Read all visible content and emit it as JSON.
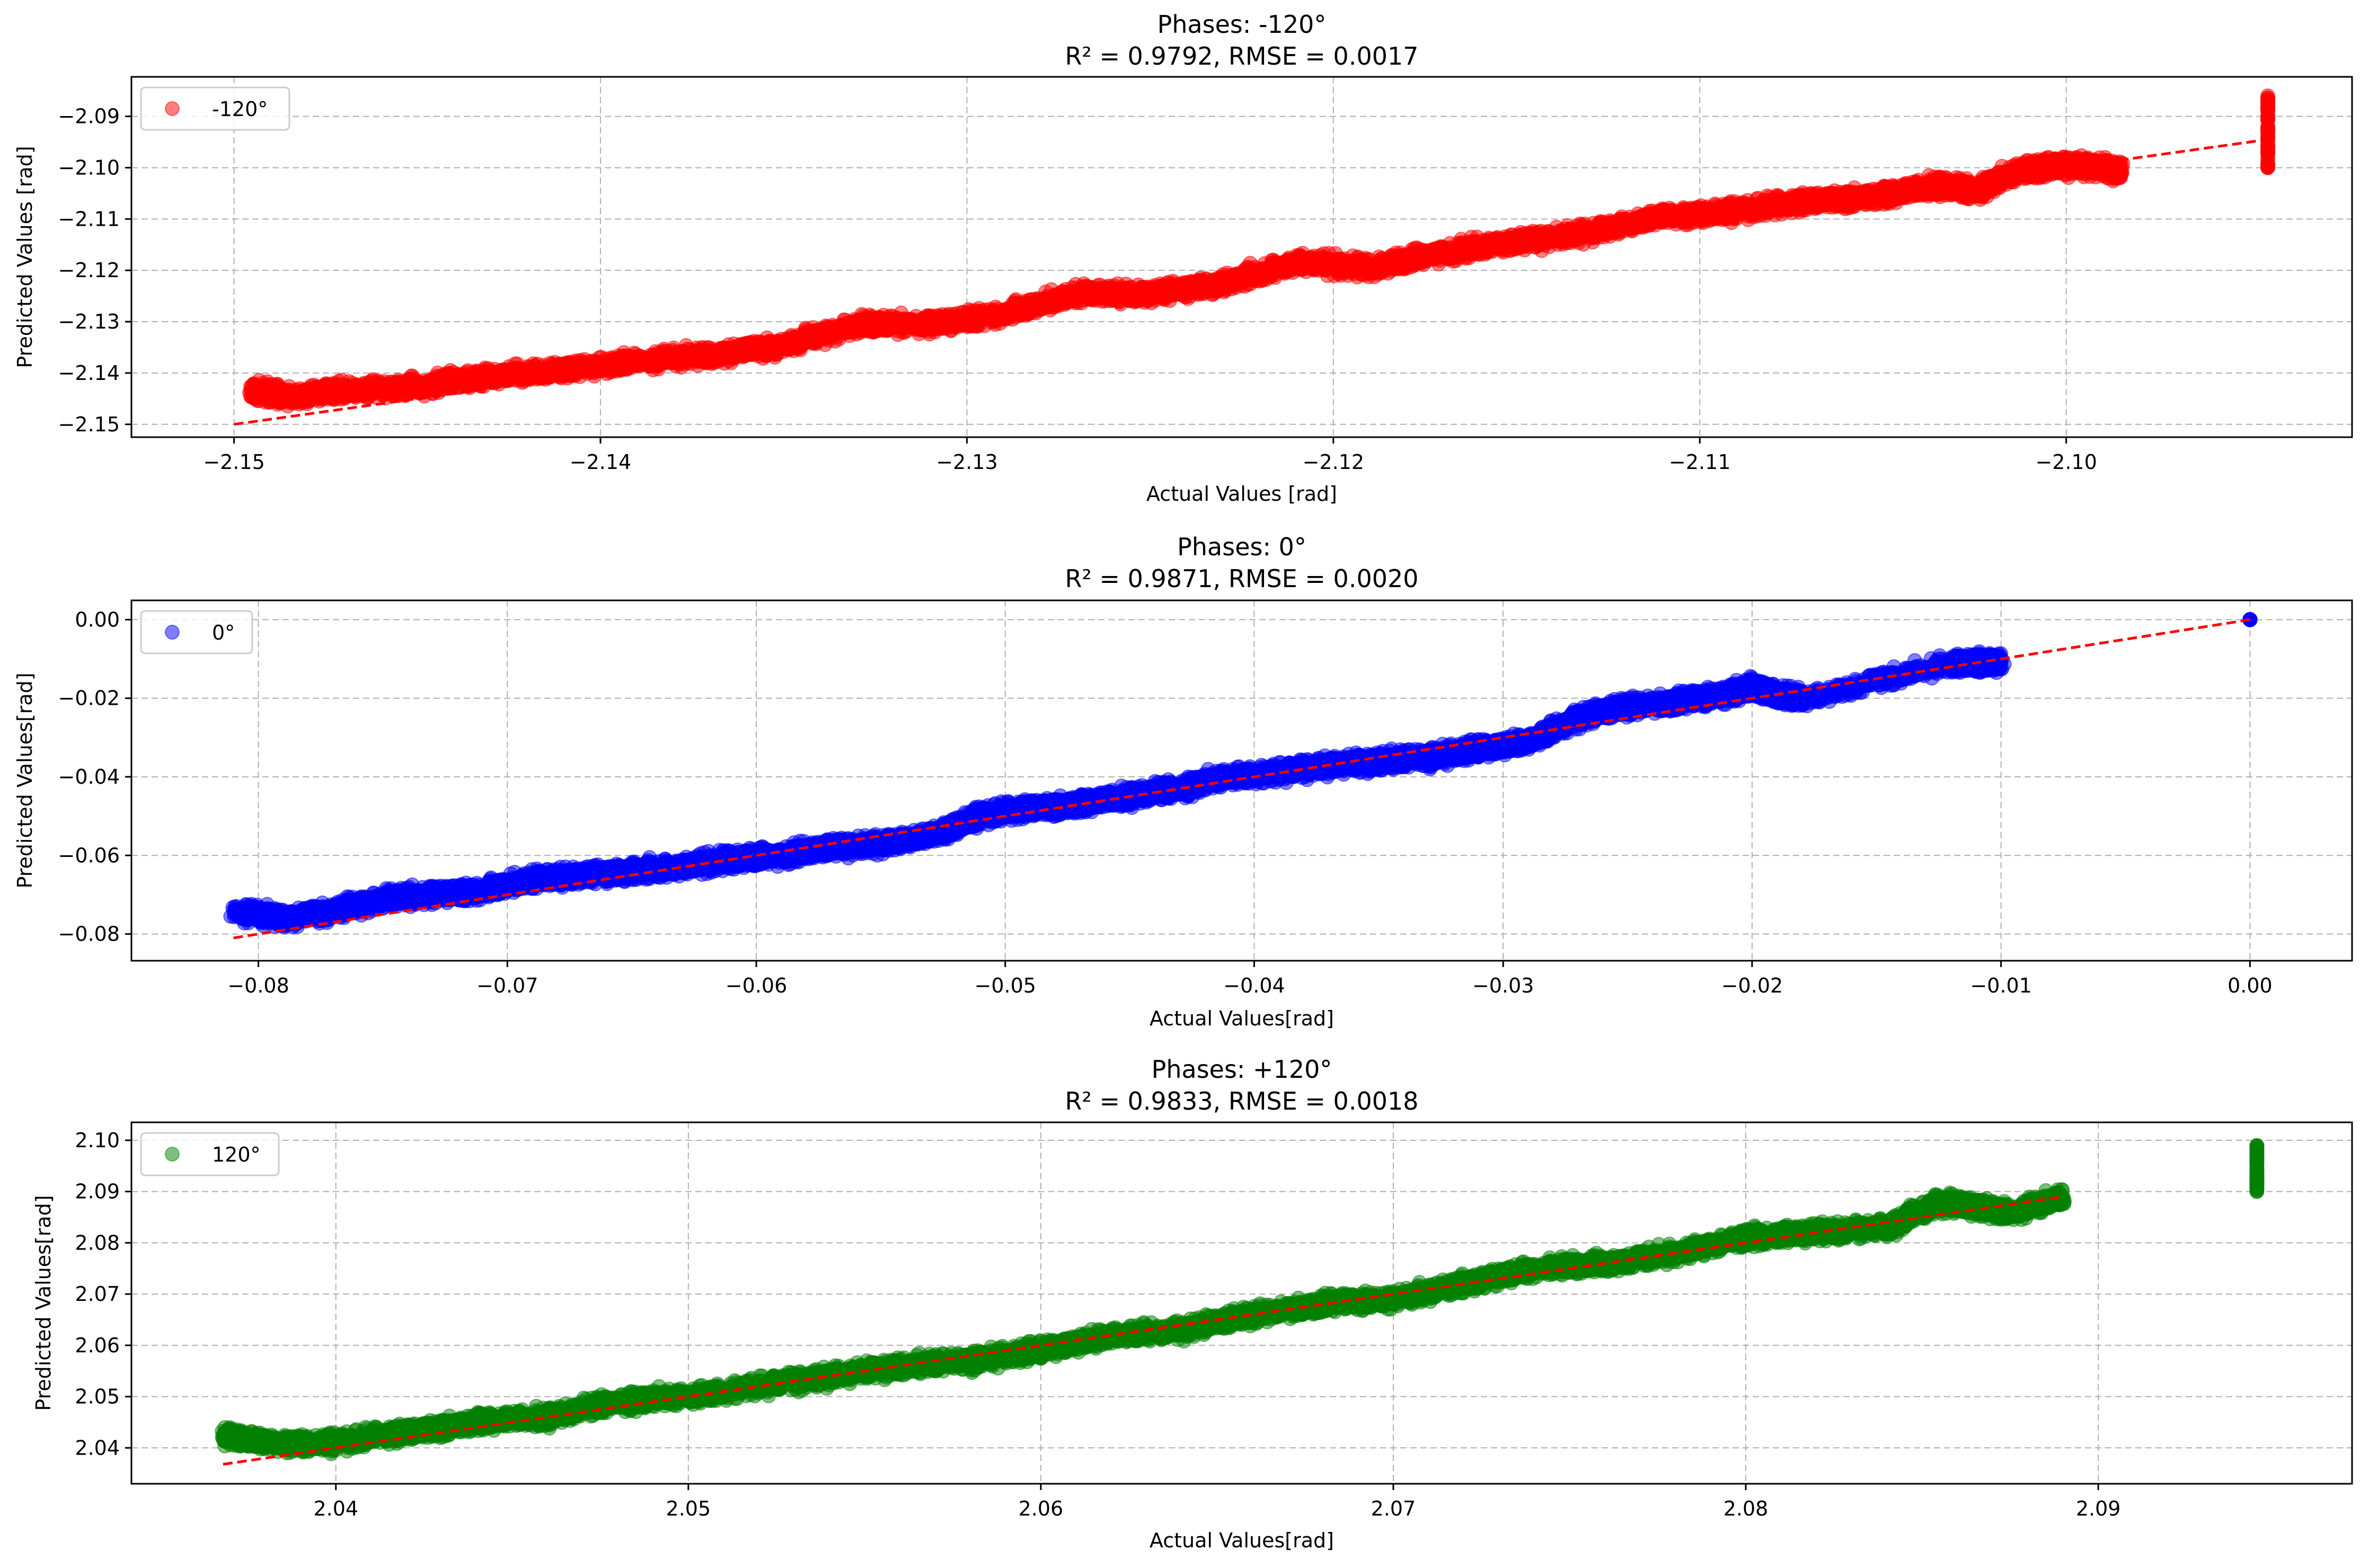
{
  "chart_data": [
    {
      "type": "scatter",
      "title": "Phases: -120°",
      "subtitle": "R² = 0.9792, RMSE = 0.0017",
      "xlabel": "Actual Values [rad]",
      "ylabel": "Predicted Values [rad]",
      "xlim": [
        -2.1528,
        -2.0922
      ],
      "ylim": [
        -2.1525,
        -2.0823
      ],
      "xticks": [
        -2.15,
        -2.14,
        -2.13,
        -2.12,
        -2.11,
        -2.1
      ],
      "yticks": [
        -2.15,
        -2.14,
        -2.13,
        -2.12,
        -2.11,
        -2.1,
        -2.09
      ],
      "x_tick_labels": [
        "−2.15",
        "−2.14",
        "−2.13",
        "−2.12",
        "−2.11",
        "−2.10"
      ],
      "y_tick_labels": [
        "−2.15",
        "−2.14",
        "−2.13",
        "−2.12",
        "−2.11",
        "−2.10",
        "−2.09"
      ],
      "grid": true,
      "legend_position": "top-left",
      "series": [
        {
          "name": "-120°",
          "color": "#ff0000",
          "marker": "circle",
          "alpha": 0.5,
          "x": [
            -2.1495,
            -2.1485,
            -2.147,
            -2.145,
            -2.143,
            -2.141,
            -2.139,
            -2.137,
            -2.135,
            -2.133,
            -2.131,
            -2.129,
            -2.127,
            -2.125,
            -2.123,
            -2.121,
            -2.119,
            -2.117,
            -2.115,
            -2.113,
            -2.111,
            -2.109,
            -2.107,
            -2.105,
            -2.1035,
            -2.1025,
            -2.1012,
            -2.1005,
            -2.0995,
            -2.0985,
            -2.0945,
            -2.0945,
            -2.0945,
            -2.0945
          ],
          "y": [
            -2.1435,
            -2.1445,
            -2.1435,
            -2.1425,
            -2.1405,
            -2.1395,
            -2.1375,
            -2.1365,
            -2.1345,
            -2.1305,
            -2.1305,
            -2.1285,
            -2.1245,
            -2.1245,
            -2.1225,
            -2.1185,
            -2.1195,
            -2.1165,
            -2.1145,
            -2.1125,
            -2.1095,
            -2.1085,
            -2.1065,
            -2.1055,
            -2.1035,
            -2.1045,
            -2.1005,
            -2.1,
            -2.0995,
            -2.1005,
            -2.086,
            -2.092,
            -2.096,
            -2.1
          ]
        }
      ],
      "reference_line": {
        "from": [
          -2.15,
          -2.15
        ],
        "to": [
          -2.0945,
          -2.0945
        ],
        "color": "#ff0000",
        "style": "dashed"
      }
    },
    {
      "type": "scatter",
      "title": "Phases: 0°",
      "subtitle": "R² = 0.9871, RMSE = 0.0020",
      "xlabel": "Actual Values[rad]",
      "ylabel": "Predicted Values[rad]",
      "xlim": [
        -0.0851,
        0.0041
      ],
      "ylim": [
        -0.0868,
        0.0049
      ],
      "xticks": [
        -0.08,
        -0.07,
        -0.06,
        -0.05,
        -0.04,
        -0.03,
        -0.02,
        -0.01,
        0.0
      ],
      "yticks": [
        -0.08,
        -0.06,
        -0.04,
        -0.02,
        0.0
      ],
      "x_tick_labels": [
        "−0.08",
        "−0.07",
        "−0.06",
        "−0.05",
        "−0.04",
        "−0.03",
        "−0.02",
        "−0.01",
        "0.00"
      ],
      "y_tick_labels": [
        "−0.08",
        "−0.06",
        "−0.04",
        "−0.02",
        "0.00"
      ],
      "grid": true,
      "legend_position": "top-left",
      "series": [
        {
          "name": "0°",
          "color": "#0000ff",
          "marker": "circle",
          "alpha": 0.5,
          "x": [
            -0.081,
            -0.079,
            -0.077,
            -0.075,
            -0.073,
            -0.071,
            -0.069,
            -0.067,
            -0.065,
            -0.063,
            -0.061,
            -0.059,
            -0.057,
            -0.055,
            -0.053,
            -0.051,
            -0.049,
            -0.047,
            -0.045,
            -0.043,
            -0.041,
            -0.039,
            -0.037,
            -0.035,
            -0.033,
            -0.031,
            -0.029,
            -0.027,
            -0.025,
            -0.023,
            -0.021,
            -0.02,
            -0.019,
            -0.018,
            -0.012,
            -0.011,
            -0.01,
            0.0
          ],
          "y": [
            -0.074,
            -0.076,
            -0.074,
            -0.071,
            -0.07,
            -0.069,
            -0.066,
            -0.065,
            -0.064,
            -0.063,
            -0.061,
            -0.06,
            -0.058,
            -0.057,
            -0.055,
            -0.05,
            -0.048,
            -0.047,
            -0.045,
            -0.043,
            -0.04,
            -0.039,
            -0.037,
            -0.036,
            -0.035,
            -0.033,
            -0.031,
            -0.025,
            -0.022,
            -0.021,
            -0.019,
            -0.017,
            -0.019,
            -0.02,
            -0.011,
            -0.011,
            -0.011,
            0.0
          ]
        }
      ],
      "reference_line": {
        "from": [
          -0.081,
          -0.081
        ],
        "to": [
          0.0,
          0.0
        ],
        "color": "#ff0000",
        "style": "dashed"
      }
    },
    {
      "type": "scatter",
      "title": "Phases: +120°",
      "subtitle": "R² = 0.9833, RMSE = 0.0018",
      "xlabel": "Actual Values[rad]",
      "ylabel": "Predicted Values[rad]",
      "xlim": [
        2.0342,
        2.0972
      ],
      "ylim": [
        2.033,
        2.1035
      ],
      "xticks": [
        2.04,
        2.05,
        2.06,
        2.07,
        2.08,
        2.09
      ],
      "yticks": [
        2.04,
        2.05,
        2.06,
        2.07,
        2.08,
        2.09,
        2.1
      ],
      "x_tick_labels": [
        "2.04",
        "2.05",
        "2.06",
        "2.07",
        "2.08",
        "2.09"
      ],
      "y_tick_labels": [
        "2.04",
        "2.05",
        "2.06",
        "2.07",
        "2.08",
        "2.09",
        "2.10"
      ],
      "grid": true,
      "legend_position": "top-left",
      "series": [
        {
          "name": "120°",
          "color": "#008000",
          "marker": "circle",
          "alpha": 0.5,
          "x": [
            2.0368,
            2.038,
            2.04,
            2.042,
            2.044,
            2.046,
            2.048,
            2.05,
            2.052,
            2.054,
            2.056,
            2.058,
            2.06,
            2.062,
            2.064,
            2.066,
            2.068,
            2.07,
            2.072,
            2.074,
            2.076,
            2.078,
            2.08,
            2.082,
            2.084,
            2.0855,
            2.0865,
            2.0875,
            2.089,
            2.0945,
            2.0945,
            2.0945
          ],
          "y": [
            2.0425,
            2.041,
            2.041,
            2.043,
            2.045,
            2.046,
            2.049,
            2.05,
            2.052,
            2.054,
            2.056,
            2.057,
            2.059,
            2.062,
            2.063,
            2.066,
            2.068,
            2.069,
            2.072,
            2.075,
            2.076,
            2.078,
            2.081,
            2.082,
            2.083,
            2.088,
            2.087,
            2.086,
            2.089,
            2.09,
            2.094,
            2.099
          ]
        }
      ],
      "reference_line": {
        "from": [
          2.0368,
          2.0368
        ],
        "to": [
          2.089,
          2.089
        ],
        "color": "#ff0000",
        "style": "dashed"
      }
    }
  ]
}
